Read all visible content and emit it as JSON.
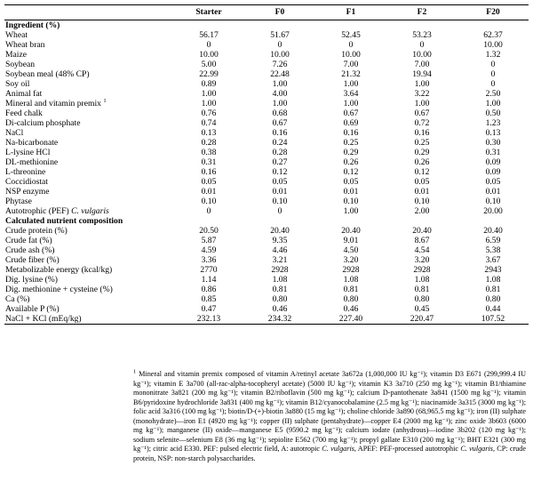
{
  "columns": [
    "Starter",
    "F0",
    "F1",
    "F2",
    "F20"
  ],
  "section_ingredients": "Ingredient (%)",
  "ingredients": [
    {
      "label": "Wheat",
      "values": [
        "56.17",
        "51.67",
        "52.45",
        "53.23",
        "62.37"
      ]
    },
    {
      "label": "Wheat bran",
      "values": [
        "0",
        "0",
        "0",
        "0",
        "10.00"
      ]
    },
    {
      "label": "Maize",
      "values": [
        "10.00",
        "10.00",
        "10.00",
        "10.00",
        "1.32"
      ]
    },
    {
      "label": "Soybean",
      "values": [
        "5.00",
        "7.26",
        "7.00",
        "7.00",
        "0"
      ]
    },
    {
      "label": "Soybean meal (48% CP)",
      "values": [
        "22.99",
        "22.48",
        "21.32",
        "19.94",
        "0"
      ]
    },
    {
      "label": "Soy oil",
      "values": [
        "0.89",
        "1.00",
        "1.00",
        "1.00",
        "0"
      ]
    },
    {
      "label": "Animal fat",
      "values": [
        "1.00",
        "4.00",
        "3.64",
        "3.22",
        "2.50"
      ]
    },
    {
      "label": "Mineral and vitamin premix",
      "sup": "1",
      "values": [
        "1.00",
        "1.00",
        "1.00",
        "1.00",
        "1.00"
      ]
    },
    {
      "label": "Feed chalk",
      "values": [
        "0.76",
        "0.68",
        "0.67",
        "0.67",
        "0.50"
      ]
    },
    {
      "label": "Di-calcium phosphate",
      "values": [
        "0.74",
        "0.67",
        "0.69",
        "0.72",
        "1.23"
      ]
    },
    {
      "label": "NaCl",
      "values": [
        "0.13",
        "0.16",
        "0.16",
        "0.16",
        "0.13"
      ]
    },
    {
      "label": "Na-bicarbonate",
      "values": [
        "0.28",
        "0.24",
        "0.25",
        "0.25",
        "0.30"
      ]
    },
    {
      "label": "L-lysine HCl",
      "values": [
        "0.38",
        "0.28",
        "0.29",
        "0.29",
        "0.31"
      ]
    },
    {
      "label": "DL-methionine",
      "values": [
        "0.31",
        "0.27",
        "0.26",
        "0.26",
        "0.09"
      ]
    },
    {
      "label": "L-threonine",
      "values": [
        "0.16",
        "0.12",
        "0.12",
        "0.12",
        "0.09"
      ]
    },
    {
      "label": "Coccidiostat",
      "values": [
        "0.05",
        "0.05",
        "0.05",
        "0.05",
        "0.05"
      ]
    },
    {
      "label": "NSP enzyme",
      "values": [
        "0.01",
        "0.01",
        "0.01",
        "0.01",
        "0.01"
      ]
    },
    {
      "label": "Phytase",
      "values": [
        "0.10",
        "0.10",
        "0.10",
        "0.10",
        "0.10"
      ]
    },
    {
      "label": "Autotrophic (PEF)",
      "italic": "C. vulgaris",
      "values": [
        "0",
        "0",
        "1.00",
        "2.00",
        "20.00"
      ]
    }
  ],
  "section_nutrients": "Calculated nutrient composition",
  "nutrients": [
    {
      "label": "Crude protein (%)",
      "values": [
        "20.50",
        "20.40",
        "20.40",
        "20.40",
        "20.40"
      ]
    },
    {
      "label": "Crude fat (%)",
      "values": [
        "5.87",
        "9.35",
        "9.01",
        "8.67",
        "6.59"
      ]
    },
    {
      "label": "Crude ash (%)",
      "values": [
        "4.59",
        "4.46",
        "4.50",
        "4.54",
        "5.38"
      ]
    },
    {
      "label": "Crude fiber (%)",
      "values": [
        "3.36",
        "3.21",
        "3.20",
        "3.20",
        "3.67"
      ]
    },
    {
      "label": "Metabolizable energy (kcal/kg)",
      "values": [
        "2770",
        "2928",
        "2928",
        "2928",
        "2943"
      ]
    },
    {
      "label": "Dig. lysine (%)",
      "values": [
        "1.14",
        "1.08",
        "1.08",
        "1.08",
        "1.08"
      ]
    },
    {
      "label": "Dig. methionine + cysteine (%)",
      "values": [
        "0.86",
        "0.81",
        "0.81",
        "0.81",
        "0.81"
      ]
    },
    {
      "label": "Ca (%)",
      "values": [
        "0.85",
        "0.80",
        "0.80",
        "0.80",
        "0.80"
      ]
    },
    {
      "label": "Available P (%)",
      "values": [
        "0.47",
        "0.46",
        "0.46",
        "0.45",
        "0.44"
      ]
    },
    {
      "label": "NaCl + KCl (mEq/kg)",
      "values": [
        "232.13",
        "234.32",
        "227.40",
        "220.47",
        "107.52"
      ]
    }
  ],
  "footnote": {
    "marker": "1",
    "text_a": "Mineral and vitamin premix composed of vitamin A/retinyl acetate 3a672a (1,000,000 IU kg⁻¹); vitamin D3 E671 (299,999.4 IU kg⁻¹); vitamin E 3a700 (all-rac-alpha-tocopheryl acetate) (5000 IU kg⁻¹); vitamin K3 3a710 (250 mg kg⁻¹); vitamin B1/thiamine mononitrate 3a821 (200 mg kg⁻¹); vitamin B2/riboflavin (500 mg kg⁻¹); calcium D-pantothenate 3a841 (1500 mg kg⁻¹); vitamin B6/pyridoxine hydrochloride 3a831 (400 mg kg⁻¹); vitamin B12/cyanocobalamine (2.5 mg kg⁻¹); niacinamide 3a315 (3000 mg kg⁻¹); folic acid 3a316 (100 mg kg⁻¹); biotin/D-(+)-biotin 3a880 (15 mg kg⁻¹); choline chloride 3a890 (68,965.5 mg kg⁻¹); iron (II) sulphate (monohydrate)—iron E1 (4920 mg kg⁻¹); copper (II) sulphate (pentahydrate)—copper E4 (2000 mg kg⁻¹); zinc oxide 3b603 (6000 mg kg⁻¹); manganese (II) oxide—manganese E5 (9590.2 mg kg⁻¹); calcium iodate (anhydrous)—iodine 3b202 (120 mg kg⁻¹); sodium selenite—selenium E8 (36 mg kg⁻¹); sepiolite E562 (700 mg kg⁻¹); propyl gallate E310 (200 mg kg⁻¹); BHT E321 (300 mg kg⁻¹); citric acid E330. PEF: pulsed electric field, A: autotropic",
    "italic_1": "C. vulgaris",
    "text_b": ", APEF: PEF-processed autotrophic",
    "italic_2": "C. vulgaris",
    "text_c": ", CP: crude protein, NSP: non-starch polysaccharides."
  }
}
